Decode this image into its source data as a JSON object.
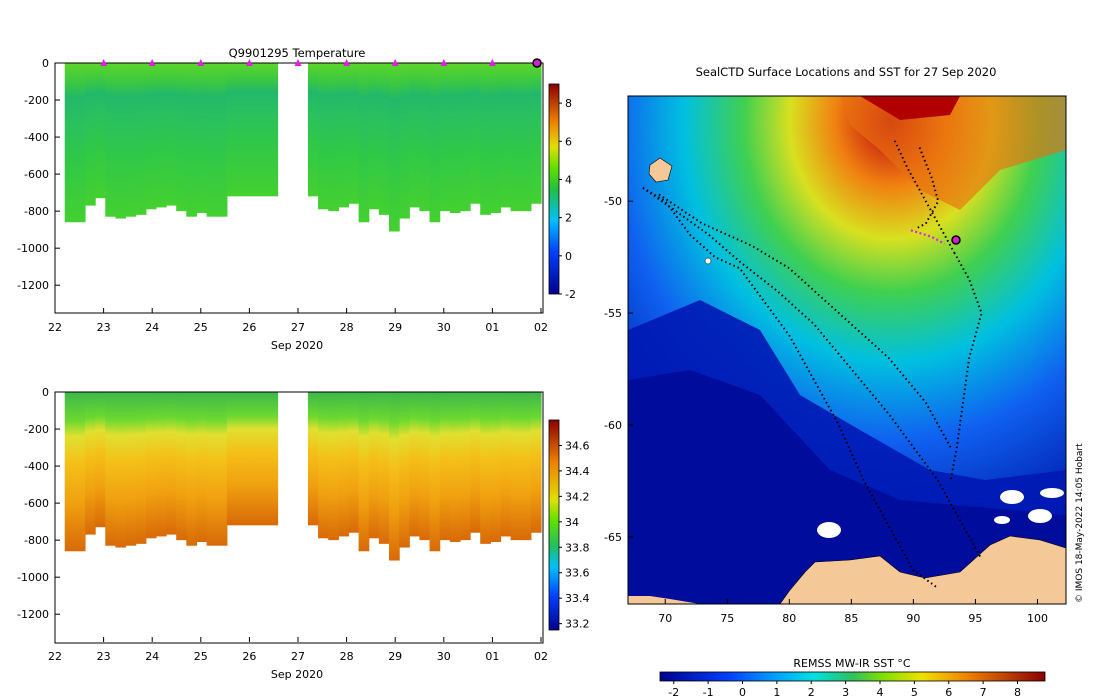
{
  "chart_data": [
    {
      "type": "heatmap",
      "title": "Q9901295  Temperature",
      "xlabel": "Sep 2020",
      "ylabel": "",
      "x_ticks": [
        "22",
        "23",
        "24",
        "25",
        "26",
        "27",
        "28",
        "29",
        "30",
        "01",
        "02"
      ],
      "y_ticks": [
        0,
        -200,
        -400,
        -600,
        -800,
        -1000,
        -1200
      ],
      "ylim": [
        -1350,
        0
      ],
      "colorbar": {
        "ticks": [
          "8",
          "6",
          "4",
          "2",
          "0",
          "-2"
        ],
        "range": [
          -2,
          9
        ]
      },
      "profile_max_depth": [
        860,
        860,
        770,
        730,
        830,
        840,
        830,
        820,
        790,
        780,
        770,
        800,
        830,
        810,
        830,
        830,
        720,
        720,
        720,
        720,
        720,
        null,
        null,
        null,
        720,
        790,
        800,
        780,
        760,
        860,
        790,
        820,
        910,
        840,
        780,
        800,
        860,
        800,
        810,
        800,
        760,
        820,
        810,
        780,
        800,
        800,
        760
      ],
      "profile_markers_day": [
        23,
        24,
        25,
        26,
        27,
        28,
        29,
        30,
        31
      ],
      "last_profile_marker": "02"
    },
    {
      "type": "heatmap",
      "title": "",
      "xlabel": "Sep 2020",
      "ylabel": "",
      "x_ticks": [
        "22",
        "23",
        "24",
        "25",
        "26",
        "27",
        "28",
        "29",
        "30",
        "01",
        "02"
      ],
      "y_ticks": [
        0,
        -200,
        -400,
        -600,
        -800,
        -1000,
        -1200
      ],
      "ylim": [
        -1350,
        0
      ],
      "colorbar": {
        "ticks": [
          "34.6",
          "34.4",
          "34.2",
          "34",
          "33.8",
          "33.6",
          "33.4",
          "33.2"
        ],
        "range": [
          33.15,
          34.8
        ]
      }
    },
    {
      "type": "heatmap",
      "title": "SealCTD Surface Locations and SST for 27 Sep 2020",
      "xlabel": "",
      "ylabel": "",
      "x_ticks": [
        "70",
        "75",
        "80",
        "85",
        "90",
        "95",
        "100"
      ],
      "y_ticks": [
        "-50",
        "-55",
        "-60",
        "-65"
      ],
      "xlim": [
        67,
        102.3
      ],
      "ylim": [
        -68,
        -45.3
      ],
      "colorbar": {
        "label": "REMSS MW-IR SST °C",
        "ticks": [
          "-2",
          "-1",
          "0",
          "1",
          "2",
          "3",
          "4",
          "5",
          "6",
          "7",
          "8"
        ],
        "range": [
          -2.4,
          8.8
        ]
      },
      "latest_position": {
        "lon": 93.3,
        "lat": -52.3
      }
    }
  ],
  "credit": "© IMOS 18-May-2022 14:05 Hobart"
}
